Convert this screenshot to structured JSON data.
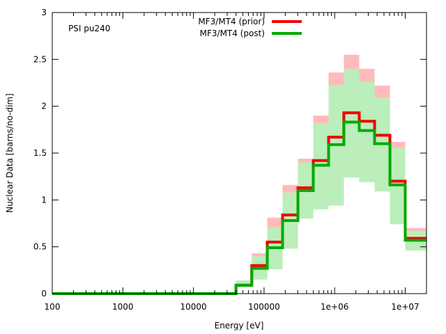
{
  "chart_data": {
    "type": "line",
    "title": "",
    "annotation": "PSI pu240",
    "xlabel": "Energy [eV]",
    "ylabel": "Nuclear Data [barns/no-dim]",
    "x_scale": "log",
    "xlim": [
      100,
      20000000
    ],
    "ylim": [
      0,
      3
    ],
    "x_ticks": [
      {
        "value": 100,
        "label": "100"
      },
      {
        "value": 1000,
        "label": "1000"
      },
      {
        "value": 10000,
        "label": "10000"
      },
      {
        "value": 100000,
        "label": "100000"
      },
      {
        "value": 1000000,
        "label": "1e+06"
      },
      {
        "value": 10000000,
        "label": "1e+07"
      }
    ],
    "y_ticks": [
      {
        "value": 0,
        "label": "0"
      },
      {
        "value": 0.5,
        "label": "0.5"
      },
      {
        "value": 1,
        "label": "1"
      },
      {
        "value": 1.5,
        "label": "1.5"
      },
      {
        "value": 2,
        "label": "2"
      },
      {
        "value": 2.5,
        "label": "2.5"
      },
      {
        "value": 3,
        "label": "3"
      }
    ],
    "bin_edges": [
      100,
      40000,
      67000,
      111000,
      183000,
      302000,
      498000,
      821000,
      1350000,
      2230000,
      3680000,
      6070000,
      10000000,
      20000000
    ],
    "series": [
      {
        "name": "MF3/MT4 (prior)",
        "color": "#ee0000",
        "band_color": "#ffbbbb",
        "values": [
          0,
          0.09,
          0.3,
          0.55,
          0.84,
          1.13,
          1.42,
          1.67,
          1.93,
          1.84,
          1.69,
          1.2,
          0.59
        ],
        "lower": [
          0,
          0.07,
          0.19,
          0.31,
          0.53,
          0.83,
          0.93,
          0.96,
          1.28,
          1.21,
          1.11,
          0.77,
          0.47
        ],
        "upper": [
          0,
          0.14,
          0.43,
          0.81,
          1.16,
          1.44,
          1.9,
          2.36,
          2.55,
          2.4,
          2.22,
          1.62,
          0.7
        ]
      },
      {
        "name": "MF3/MT4 (post)",
        "color": "#00aa00",
        "band_color": "#bbeebb",
        "values": [
          0,
          0.09,
          0.27,
          0.49,
          0.78,
          1.1,
          1.37,
          1.59,
          1.83,
          1.74,
          1.6,
          1.16,
          0.57
        ],
        "lower": [
          0,
          0.07,
          0.15,
          0.26,
          0.48,
          0.8,
          0.9,
          0.94,
          1.24,
          1.19,
          1.09,
          0.74,
          0.46
        ],
        "upper": [
          0,
          0.14,
          0.4,
          0.71,
          1.08,
          1.4,
          1.82,
          2.23,
          2.4,
          2.26,
          2.09,
          1.56,
          0.67
        ]
      }
    ]
  }
}
